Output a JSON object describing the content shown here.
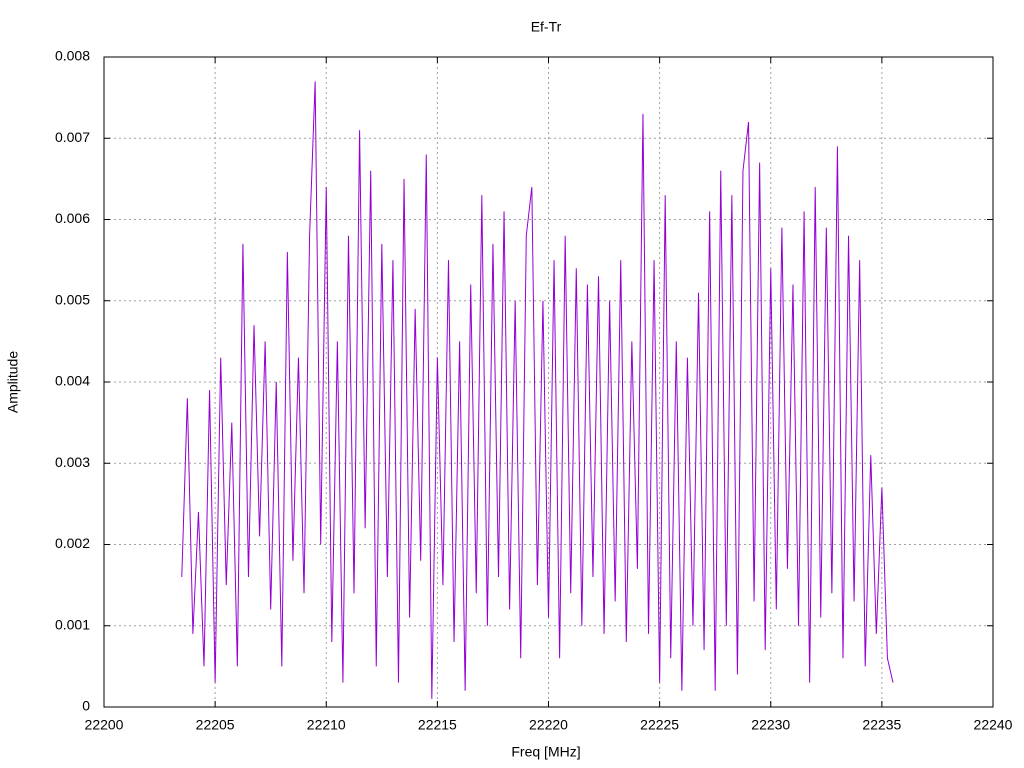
{
  "chart_data": {
    "type": "line",
    "title": "Ef-Tr",
    "xlabel": "Freq [MHz]",
    "ylabel": "Amplitude",
    "xlim": [
      22200,
      22240
    ],
    "xticks": [
      22200,
      22205,
      22210,
      22215,
      22220,
      22225,
      22230,
      22235,
      22240
    ],
    "ylim": [
      0,
      0.008
    ],
    "yticks": [
      0,
      0.001,
      0.002,
      0.003,
      0.004,
      0.005,
      0.006,
      0.007,
      0.008
    ],
    "grid": true,
    "x": [
      22203.5,
      22203.75,
      22204,
      22204.25,
      22204.5,
      22204.75,
      22205,
      22205.25,
      22205.5,
      22205.75,
      22206,
      22206.25,
      22206.5,
      22206.75,
      22207,
      22207.25,
      22207.5,
      22207.75,
      22208,
      22208.25,
      22208.5,
      22208.75,
      22209,
      22209.25,
      22209.5,
      22209.75,
      22210,
      22210.25,
      22210.5,
      22210.75,
      22211,
      22211.25,
      22211.5,
      22211.75,
      22212,
      22212.25,
      22212.5,
      22212.75,
      22213,
      22213.25,
      22213.5,
      22213.75,
      22214,
      22214.25,
      22214.5,
      22214.75,
      22215,
      22215.25,
      22215.5,
      22215.75,
      22216,
      22216.25,
      22216.5,
      22216.75,
      22217,
      22217.25,
      22217.5,
      22217.75,
      22218,
      22218.25,
      22218.5,
      22218.75,
      22219,
      22219.25,
      22219.5,
      22219.75,
      22220,
      22220.25,
      22220.5,
      22220.75,
      22221,
      22221.25,
      22221.5,
      22221.75,
      22222,
      22222.25,
      22222.5,
      22222.75,
      22223,
      22223.25,
      22223.5,
      22223.75,
      22224,
      22224.25,
      22224.5,
      22224.75,
      22225,
      22225.25,
      22225.5,
      22225.75,
      22226,
      22226.25,
      22226.5,
      22226.75,
      22227,
      22227.25,
      22227.5,
      22227.75,
      22228,
      22228.25,
      22228.5,
      22228.75,
      22229,
      22229.25,
      22229.5,
      22229.75,
      22230,
      22230.25,
      22230.5,
      22230.75,
      22231,
      22231.25,
      22231.5,
      22231.75,
      22232,
      22232.25,
      22232.5,
      22232.75,
      22233,
      22233.25,
      22233.5,
      22233.75,
      22234,
      22234.25,
      22234.5,
      22234.75,
      22235,
      22235.25,
      22235.5
    ],
    "series": [
      {
        "color": "#9400d3",
        "values": [
          0.0016,
          0.0038,
          0.0009,
          0.0024,
          0.0005,
          0.0039,
          0.0003,
          0.0043,
          0.0015,
          0.0035,
          0.0005,
          0.0057,
          0.0016,
          0.0047,
          0.0021,
          0.0045,
          0.0012,
          0.004,
          0.0005,
          0.0056,
          0.0018,
          0.0043,
          0.0014,
          0.0058,
          0.0077,
          0.002,
          0.0064,
          0.0008,
          0.0045,
          0.0003,
          0.0058,
          0.0014,
          0.0071,
          0.0022,
          0.0066,
          0.0005,
          0.0057,
          0.0016,
          0.0055,
          0.0003,
          0.0065,
          0.0011,
          0.0049,
          0.0018,
          0.0068,
          0.0001,
          0.0043,
          0.0015,
          0.0055,
          0.0008,
          0.0045,
          0.0002,
          0.0052,
          0.0014,
          0.0063,
          0.001,
          0.0057,
          0.0016,
          0.0061,
          0.0012,
          0.005,
          0.0006,
          0.0058,
          0.0064,
          0.0015,
          0.005,
          0.0011,
          0.0055,
          0.0006,
          0.0058,
          0.0014,
          0.0054,
          0.001,
          0.0052,
          0.0016,
          0.0053,
          0.0009,
          0.005,
          0.0013,
          0.0055,
          0.0008,
          0.0045,
          0.0017,
          0.0073,
          0.0009,
          0.0055,
          0.0003,
          0.0063,
          0.0006,
          0.0045,
          0.0002,
          0.0043,
          0.001,
          0.0051,
          0.0007,
          0.0061,
          0.0002,
          0.0066,
          0.001,
          0.0063,
          0.0004,
          0.0066,
          0.0072,
          0.0013,
          0.0067,
          0.0007,
          0.0054,
          0.0012,
          0.0059,
          0.0017,
          0.0052,
          0.001,
          0.0061,
          0.0003,
          0.0064,
          0.0011,
          0.0059,
          0.0014,
          0.0069,
          0.0006,
          0.0058,
          0.0013,
          0.0055,
          0.0005,
          0.0031,
          0.0009,
          0.0027,
          0.0006,
          0.0003
        ]
      }
    ]
  }
}
